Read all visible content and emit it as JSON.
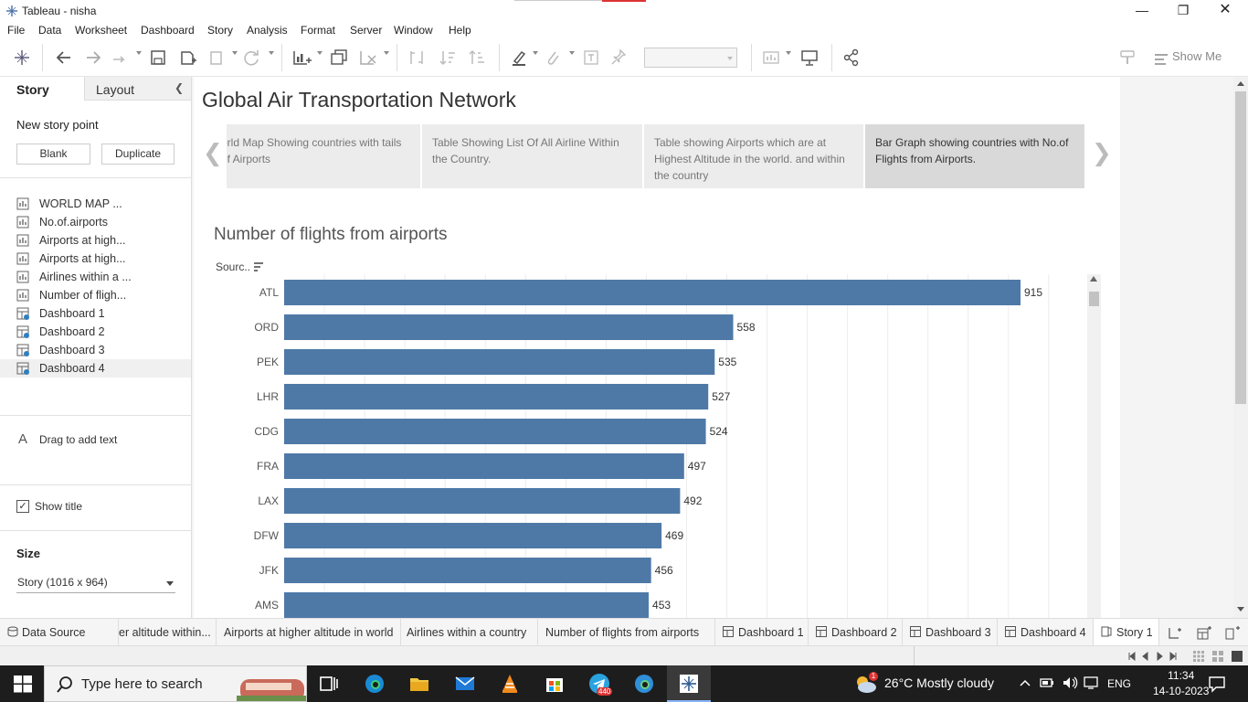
{
  "window": {
    "title": "Tableau - nisha"
  },
  "menu": [
    "File",
    "Data",
    "Worksheet",
    "Dashboard",
    "Story",
    "Analysis",
    "Format",
    "Server",
    "Window",
    "Help"
  ],
  "toolbar": {
    "show_me": "Show Me"
  },
  "left_panel": {
    "tab_story": "Story",
    "tab_layout": "Layout",
    "new_story_point": "New story point",
    "blank_button": "Blank",
    "duplicate_button": "Duplicate",
    "sheets": [
      {
        "label": "WORLD MAP ...",
        "kind": "worksheet"
      },
      {
        "label": "No.of.airports",
        "kind": "worksheet"
      },
      {
        "label": "Airports at high...",
        "kind": "worksheet"
      },
      {
        "label": "Airports at high...",
        "kind": "worksheet"
      },
      {
        "label": "Airlines within a ...",
        "kind": "worksheet"
      },
      {
        "label": "Number of fligh...",
        "kind": "worksheet"
      },
      {
        "label": "Dashboard 1",
        "kind": "dashboard"
      },
      {
        "label": "Dashboard 2",
        "kind": "dashboard"
      },
      {
        "label": "Dashboard 3",
        "kind": "dashboard"
      },
      {
        "label": "Dashboard 4",
        "kind": "dashboard"
      }
    ],
    "drag_text": "Drag to add text",
    "show_title": "Show title",
    "size_label": "Size",
    "size_value": "Story (1016 x 964)"
  },
  "story": {
    "title": "Global Air Transportation Network",
    "points": [
      "orld Map Showing countries with tails of Airports",
      "Table Showing List Of All Airline Within the Country.",
      "Table showing Airports which are at Highest Altitude in the world. and within the country",
      "Bar Graph showing countries with No.of Flights from Airports."
    ],
    "active_point": 3
  },
  "chart_data": {
    "type": "bar",
    "orientation": "horizontal",
    "title": "Number of flights from airports",
    "axis_header": "Sourc..",
    "categories": [
      "ATL",
      "ORD",
      "PEK",
      "LHR",
      "CDG",
      "FRA",
      "LAX",
      "DFW",
      "JFK",
      "AMS"
    ],
    "values": [
      915,
      558,
      535,
      527,
      524,
      497,
      492,
      469,
      456,
      453
    ],
    "xlim": [
      0,
      1000
    ],
    "grid": true,
    "bar_color": "#4e79a7"
  },
  "sheet_tabs": [
    {
      "label": "Data Source",
      "kind": "datasource"
    },
    {
      "label": "er altitude within...",
      "kind": "worksheet"
    },
    {
      "label": "Airports at higher altitude in world",
      "kind": "worksheet"
    },
    {
      "label": "Airlines within a country",
      "kind": "worksheet"
    },
    {
      "label": "Number of flights from airports",
      "kind": "worksheet"
    },
    {
      "label": "Dashboard 1",
      "kind": "dashboard"
    },
    {
      "label": "Dashboard 2",
      "kind": "dashboard"
    },
    {
      "label": "Dashboard 3",
      "kind": "dashboard"
    },
    {
      "label": "Dashboard 4",
      "kind": "dashboard"
    },
    {
      "label": "Story 1",
      "kind": "story"
    }
  ],
  "taskbar": {
    "search_placeholder": "Type here to search",
    "weather": "26°C  Mostly cloudy",
    "weather_badge": "1",
    "telegram_badge": "440",
    "language": "ENG",
    "time": "11:34",
    "date": "14-10-2023"
  }
}
